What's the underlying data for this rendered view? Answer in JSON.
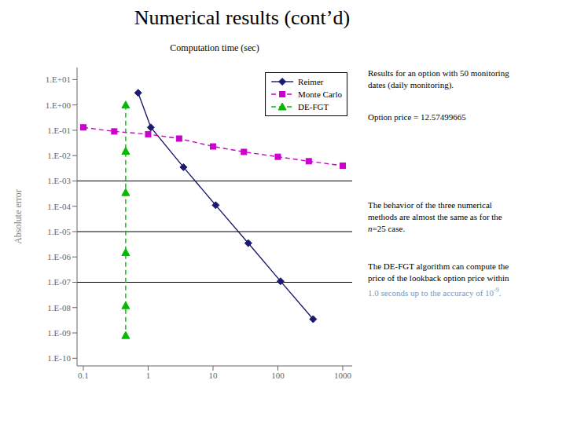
{
  "chart_data": {
    "type": "line",
    "title": "Numerical results (cont’d)",
    "xlabel": "Computation time (sec)",
    "ylabel": "Absolute error",
    "log": true,
    "grid": false,
    "legend": "upper right",
    "xlim": [
      0.08,
      1400
    ],
    "ylim": [
      5e-11,
      30
    ],
    "xticks": [
      0.1,
      1,
      10,
      100,
      1000
    ],
    "yticks": [
      {
        "value": 10,
        "label": "1.E+01"
      },
      {
        "value": 1,
        "label": "1.E+00"
      },
      {
        "value": 0.1,
        "label": "1.E-01"
      },
      {
        "value": 0.01,
        "label": "1.E-02"
      },
      {
        "value": 0.001,
        "label": "1.E-03"
      },
      {
        "value": 0.0001,
        "label": "1.E-04"
      },
      {
        "value": 1e-05,
        "label": "1.E-05"
      },
      {
        "value": 1e-06,
        "label": "1.E-06"
      },
      {
        "value": 1e-07,
        "label": "1.E-07"
      },
      {
        "value": 1e-08,
        "label": "1.E-08"
      },
      {
        "value": 1e-09,
        "label": "1.E-09"
      },
      {
        "value": 1e-10,
        "label": "1.E-10"
      }
    ],
    "series": [
      {
        "name": "Reimer",
        "color": "#1a1a6e",
        "marker": "diamond",
        "line_style": "solid",
        "x": [
          0.7,
          1.1,
          3.5,
          11.0,
          35.0,
          110.0,
          350.0
        ],
        "values": [
          3.0,
          0.13,
          0.0035,
          0.00011,
          3.5e-06,
          1.1e-07,
          3.5e-09
        ]
      },
      {
        "name": "Monte Carlo",
        "color": "#cc00cc",
        "marker": "square",
        "line_style": "dashed",
        "x": [
          0.1,
          0.3,
          1.0,
          3.0,
          10.0,
          30.0,
          100.0,
          300.0,
          1000.0
        ],
        "values": [
          0.13,
          0.09,
          0.07,
          0.047,
          0.023,
          0.014,
          0.009,
          0.006,
          0.004
        ]
      },
      {
        "name": "DE-FGT",
        "color": "#00bb00",
        "marker": "triangle",
        "line_style": "dashed",
        "x": [
          0.45,
          0.45,
          0.45,
          0.45,
          0.45,
          0.45
        ],
        "values": [
          1.0,
          0.015,
          0.00035,
          1.5e-06,
          1.2e-08,
          8e-10
        ]
      }
    ],
    "hlines": [
      0.001,
      1e-05,
      1e-07
    ],
    "annotations": [
      [
        [
          {
            "text": "Results for an option with 50 monitoring",
            "color": "#000000"
          }
        ],
        [
          {
            "text": "dates (daily monitoring).",
            "color": "#000000"
          }
        ]
      ],
      [
        [
          {
            "text": "Option price = 12.57499665",
            "color": "#000000"
          }
        ]
      ],
      [
        [
          {
            "text": "The behavior of the three numerical",
            "color": "#000000"
          }
        ],
        [
          {
            "text": "methods are almost the same as for the",
            "color": "#000000"
          }
        ],
        [
          {
            "text": "n",
            "color": "#000000",
            "style": "italic"
          },
          {
            "text": "=25 case.",
            "color": "#000000"
          }
        ]
      ],
      [
        [
          {
            "text": "The DE-FGT algorithm can compute the",
            "color": "#000000"
          }
        ],
        [
          {
            "text": "price of the lookback option price within",
            "color": "#000000"
          }
        ],
        [
          {
            "text": "1.0 seconds",
            "color": "#7799bb"
          },
          {
            "text": " up to the accuracy of 10",
            "color": "#7799bb"
          },
          {
            "text": "-9",
            "color": "#7799bb",
            "style": "superscript"
          },
          {
            "text": ".",
            "color": "#7799bb"
          }
        ]
      ]
    ]
  }
}
